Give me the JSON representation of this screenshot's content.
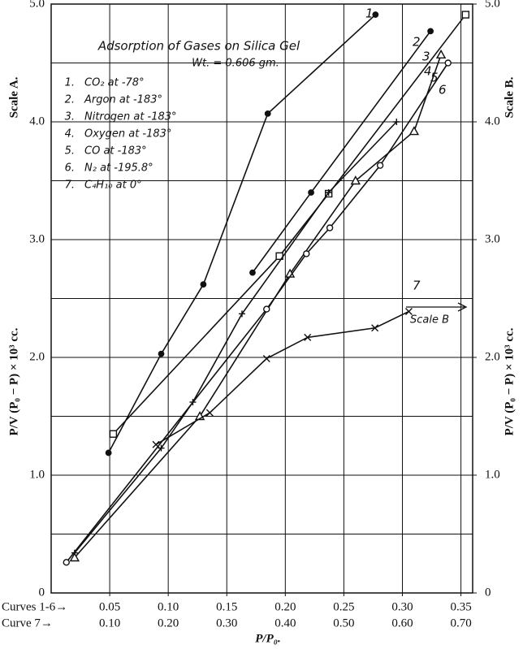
{
  "chart_data": {
    "type": "scatter-line",
    "title": "Adsorption of Gases on Silica Gel",
    "subtitle": "Wt. = 0.606 gm.",
    "y_label": "P/V (P₀ − P) × 10³ cc.",
    "y_scale_label": "Scale A.",
    "y2_label": "P/V (P₀ − P) × 10³ cc.",
    "y2_scale_label": "Scale B.",
    "x_label": "P/P₀.",
    "x_row_label": "Curves 1-6→",
    "x2_row_label": "Curve 7→",
    "annotation": "Scale B",
    "xlim": [
      0,
      0.36
    ],
    "xticks": [
      0.05,
      {
        "value": 0.1,
        "label": "0.10"
      },
      0.15,
      {
        "value": 0.2,
        "label": "0.20"
      },
      0.25,
      {
        "value": 0.3,
        "label": "0.30"
      },
      0.35
    ],
    "x2lim": [
      0,
      0.72
    ],
    "x2ticks": [
      {
        "value": 0.1,
        "label": "0.10"
      },
      {
        "value": 0.2,
        "label": "0.20"
      },
      {
        "value": 0.3,
        "label": "0.30"
      },
      {
        "value": 0.4,
        "label": "0.40"
      },
      {
        "value": 0.5,
        "label": "0.50"
      },
      {
        "value": 0.6,
        "label": "0.60"
      },
      {
        "value": 0.7,
        "label": "0.70"
      }
    ],
    "ylim": [
      0,
      5
    ],
    "yticks": [
      0,
      {
        "value": 1,
        "label": "1.0"
      },
      {
        "value": 2,
        "label": "2.0"
      },
      {
        "value": 3,
        "label": "3.0"
      },
      {
        "value": 4,
        "label": "4.0"
      },
      {
        "value": 5,
        "label": "5.0"
      }
    ],
    "y2lim": [
      0,
      5
    ],
    "y2ticks": [
      0,
      {
        "value": 1,
        "label": "1.0"
      },
      {
        "value": 2,
        "label": "2.0"
      },
      {
        "value": 3,
        "label": "3.0"
      },
      {
        "value": 4,
        "label": "4.0"
      },
      {
        "value": 5,
        "label": "5.0"
      }
    ],
    "ygrid_minor": [
      0.5,
      1.5,
      2.5,
      3.5,
      4.5
    ],
    "grid": true,
    "color": "#111111",
    "series": [
      {
        "name": "CO₂ at -78°",
        "number": "1.",
        "curve_label": "1",
        "marker": "dot",
        "x": [
          0.049,
          0.094,
          0.13,
          0.185,
          0.277
        ],
        "values": [
          1.19,
          2.03,
          2.62,
          4.07,
          4.91
        ]
      },
      {
        "name": "Argon at -183°",
        "number": "2.",
        "curve_label": "2",
        "marker": "dot",
        "x": [
          0.172,
          0.222,
          0.324
        ],
        "values": [
          2.72,
          3.4,
          4.77
        ]
      },
      {
        "name": "Nitrogen at -183°",
        "number": "3.",
        "curve_label": "3",
        "marker": "square",
        "x": [
          0.053,
          0.195,
          0.237,
          0.354
        ],
        "values": [
          1.35,
          2.86,
          3.39,
          4.91
        ]
      },
      {
        "name": "Oxygen at -183°",
        "number": "4.",
        "curve_label": "4",
        "marker": "plus",
        "x": [
          0.02,
          0.094,
          0.121,
          0.163,
          0.237,
          0.295
        ],
        "values": [
          0.34,
          1.23,
          1.62,
          2.37,
          3.4,
          4.0
        ]
      },
      {
        "name": "CO at -183°",
        "number": "5.",
        "curve_label": "5",
        "marker": "triangle",
        "x": [
          0.02,
          0.127,
          0.204,
          0.26,
          0.31,
          0.333
        ],
        "values": [
          0.3,
          1.5,
          2.71,
          3.5,
          3.92,
          4.57
        ]
      },
      {
        "name": "N₂ at -195.8°",
        "number": "6.",
        "curve_label": "6",
        "marker": "circle",
        "x": [
          0.013,
          0.184,
          0.218,
          0.238,
          0.281,
          0.339
        ],
        "values": [
          0.26,
          2.41,
          2.88,
          3.1,
          3.63,
          4.5
        ]
      },
      {
        "name": "C₄H₁₀ at 0°",
        "number": "7.",
        "curve_label": "7",
        "marker": "x",
        "axis": "y2",
        "xaxis": "x2",
        "x": [
          0.179,
          0.271,
          0.368,
          0.438,
          0.553,
          0.611
        ],
        "values": [
          1.26,
          1.53,
          1.99,
          2.17,
          2.25,
          2.39
        ]
      }
    ]
  }
}
